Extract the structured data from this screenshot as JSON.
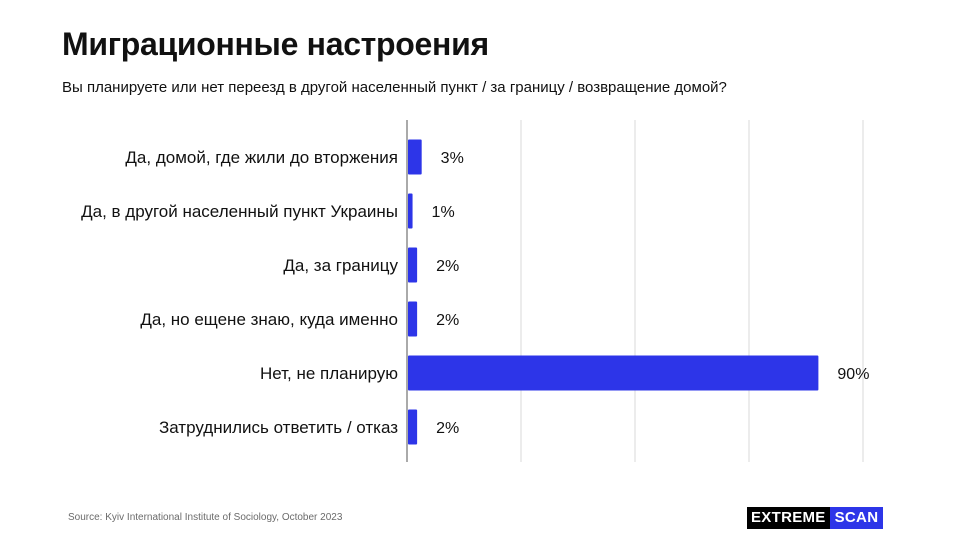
{
  "title": "Миграционные настроения",
  "subtitle": "Вы планируете  или нет переезд  в другой населенный  пункт  / за границу  / возвращение  домой?",
  "source": "Source: Kyiv International Institute of Sociology, October 2023",
  "brand": {
    "part1": "EXTREME",
    "part2": "SCAN",
    "part2_color": "#2d35e8"
  },
  "colors": {
    "bar": "#2d35e8",
    "grid": "#d9d9d9",
    "axis": "#555555"
  },
  "chart_data": {
    "type": "bar",
    "orientation": "horizontal",
    "categories": [
      "Да, домой, где жили до вторжения",
      "Да, в другой населенный пункт Украины",
      "Да, за границу",
      "Да, но ещене знаю, куда именно",
      "Нет, не планирую",
      "Затруднились ответить / отказ"
    ],
    "values": [
      3,
      1,
      2,
      2,
      90,
      2
    ],
    "value_labels": [
      "3%",
      "1%",
      "2%",
      "2%",
      "90%",
      "2%"
    ],
    "unit": "%",
    "xlim": [
      0,
      100
    ],
    "grid": true,
    "legend": "none"
  }
}
